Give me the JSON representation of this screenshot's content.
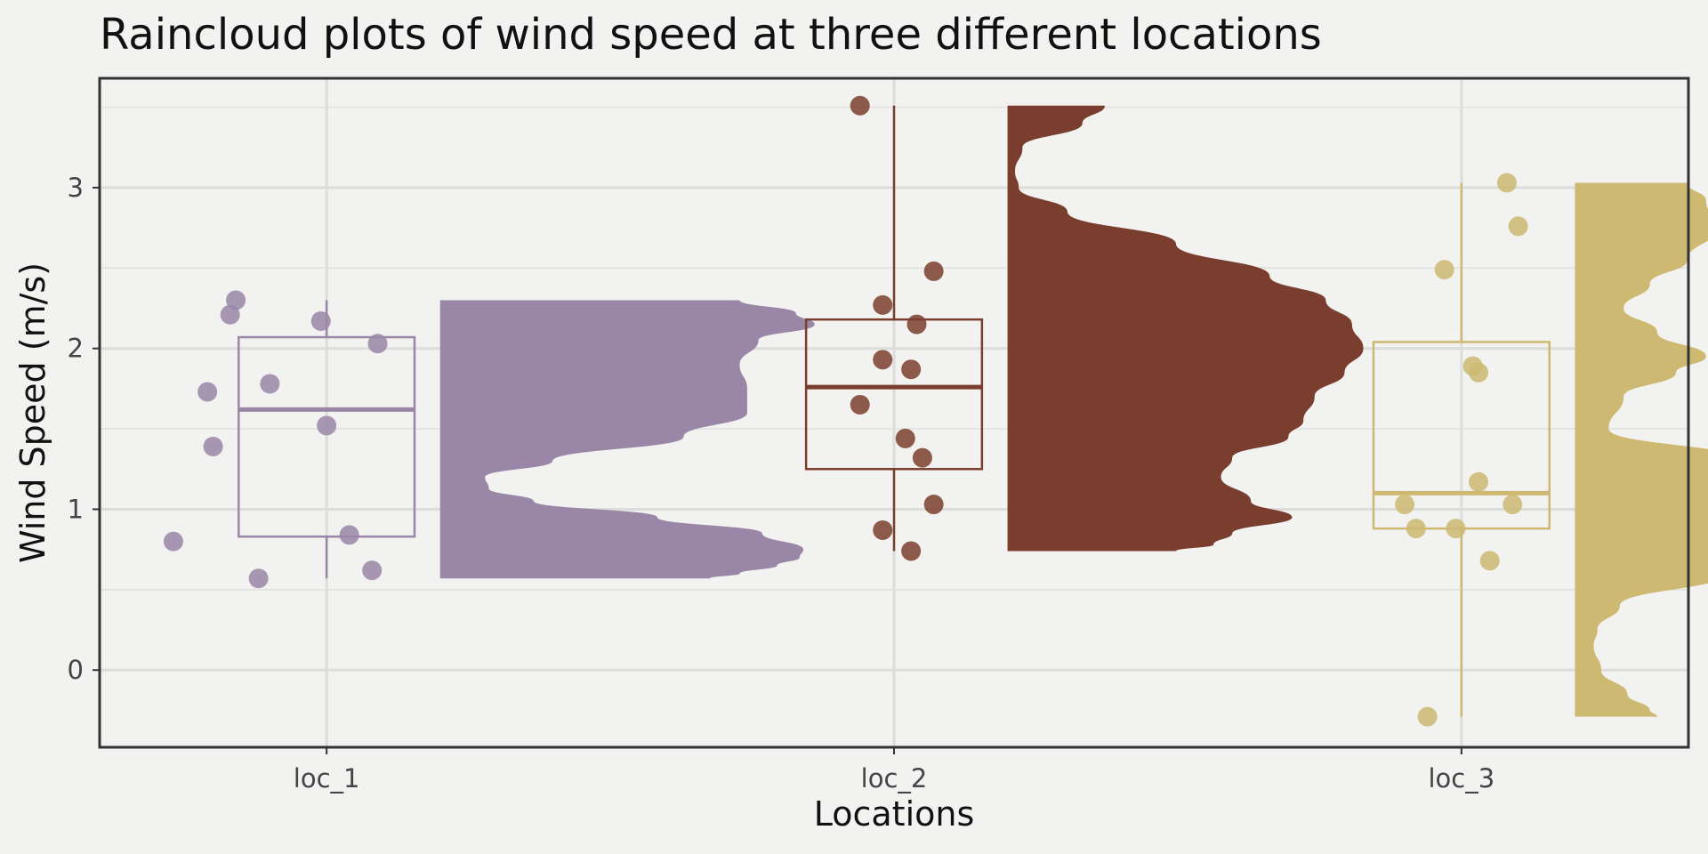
{
  "chart_data": {
    "type": "raincloud",
    "title": "Raincloud plots of wind speed at three different locations",
    "xlabel": "Locations",
    "ylabel": "Wind Speed (m/s)",
    "categories": [
      "loc_1",
      "loc_2",
      "loc_3"
    ],
    "ylim": [
      -0.48,
      3.68
    ],
    "yticks": [
      0,
      1,
      2,
      3
    ],
    "grid": true,
    "legend": "none",
    "series": [
      {
        "category": "loc_1",
        "color": "#9a86a6",
        "box": {
          "min": 0.57,
          "q1": 0.83,
          "median": 1.62,
          "q3": 2.07,
          "max": 2.3
        },
        "points": [
          {
            "x": 0.84,
            "y": 2.3
          },
          {
            "x": 0.83,
            "y": 2.21
          },
          {
            "x": 0.99,
            "y": 2.17
          },
          {
            "x": 1.09,
            "y": 2.03
          },
          {
            "x": 0.9,
            "y": 1.78
          },
          {
            "x": 0.79,
            "y": 1.73
          },
          {
            "x": 1.0,
            "y": 1.52
          },
          {
            "x": 0.8,
            "y": 1.39
          },
          {
            "x": 1.04,
            "y": 0.84
          },
          {
            "x": 0.73,
            "y": 0.8
          },
          {
            "x": 1.08,
            "y": 0.62
          },
          {
            "x": 0.88,
            "y": 0.57
          }
        ],
        "density": {
          "y": [
            2.3,
            2.22,
            2.15,
            2.05,
            1.9,
            1.75,
            1.6,
            1.45,
            1.3,
            1.2,
            1.13,
            1.05,
            0.95,
            0.85,
            0.75,
            0.7,
            0.65,
            0.6,
            0.57
          ],
          "d": [
            0.8,
            0.95,
            1.0,
            0.85,
            0.8,
            0.82,
            0.82,
            0.65,
            0.3,
            0.12,
            0.13,
            0.25,
            0.58,
            0.86,
            0.97,
            0.96,
            0.9,
            0.8,
            0.72
          ]
        }
      },
      {
        "category": "loc_2",
        "color": "#7a3e2e",
        "box": {
          "min": 0.74,
          "q1": 1.25,
          "median": 1.76,
          "q3": 2.18,
          "max": 3.51
        },
        "points": [
          {
            "x": 1.94,
            "y": 3.51
          },
          {
            "x": 2.07,
            "y": 2.48
          },
          {
            "x": 1.98,
            "y": 2.27
          },
          {
            "x": 2.04,
            "y": 2.15
          },
          {
            "x": 1.98,
            "y": 1.93
          },
          {
            "x": 2.03,
            "y": 1.87
          },
          {
            "x": 1.94,
            "y": 1.65
          },
          {
            "x": 2.02,
            "y": 1.44
          },
          {
            "x": 2.05,
            "y": 1.32
          },
          {
            "x": 2.07,
            "y": 1.03
          },
          {
            "x": 1.98,
            "y": 0.87
          },
          {
            "x": 2.03,
            "y": 0.74
          }
        ],
        "density": {
          "y": [
            3.51,
            3.4,
            3.25,
            3.1,
            3.0,
            2.85,
            2.65,
            2.45,
            2.3,
            2.15,
            2.0,
            1.85,
            1.7,
            1.55,
            1.45,
            1.32,
            1.2,
            1.05,
            0.95,
            0.85,
            0.78,
            0.74
          ],
          "d": [
            0.26,
            0.2,
            0.04,
            0.02,
            0.03,
            0.16,
            0.45,
            0.7,
            0.85,
            0.92,
            0.95,
            0.9,
            0.82,
            0.79,
            0.75,
            0.6,
            0.57,
            0.65,
            0.76,
            0.6,
            0.55,
            0.45
          ]
        }
      },
      {
        "category": "loc_3",
        "color": "#cdb971",
        "box": {
          "min": -0.29,
          "q1": 0.88,
          "median": 1.1,
          "q3": 2.04,
          "max": 3.03
        },
        "points": [
          {
            "x": 3.08,
            "y": 3.03
          },
          {
            "x": 3.1,
            "y": 2.76
          },
          {
            "x": 2.97,
            "y": 2.49
          },
          {
            "x": 3.02,
            "y": 1.89
          },
          {
            "x": 3.03,
            "y": 1.85
          },
          {
            "x": 3.03,
            "y": 1.17
          },
          {
            "x": 2.9,
            "y": 1.03
          },
          {
            "x": 3.09,
            "y": 1.03
          },
          {
            "x": 2.92,
            "y": 0.88
          },
          {
            "x": 2.99,
            "y": 0.88
          },
          {
            "x": 3.05,
            "y": 0.68
          },
          {
            "x": 2.94,
            "y": -0.29
          }
        ],
        "density": {
          "y": [
            3.03,
            2.92,
            2.75,
            2.55,
            2.4,
            2.25,
            2.1,
            1.95,
            1.85,
            1.7,
            1.5,
            1.3,
            1.1,
            0.95,
            0.8,
            0.6,
            0.4,
            0.25,
            0.15,
            0.0,
            -0.15,
            -0.25,
            -0.29
          ],
          "d": [
            0.3,
            0.35,
            0.38,
            0.3,
            0.2,
            0.13,
            0.22,
            0.35,
            0.27,
            0.13,
            0.09,
            0.45,
            0.9,
            1.0,
            0.78,
            0.4,
            0.12,
            0.06,
            0.05,
            0.07,
            0.14,
            0.2,
            0.22
          ]
        }
      }
    ]
  }
}
